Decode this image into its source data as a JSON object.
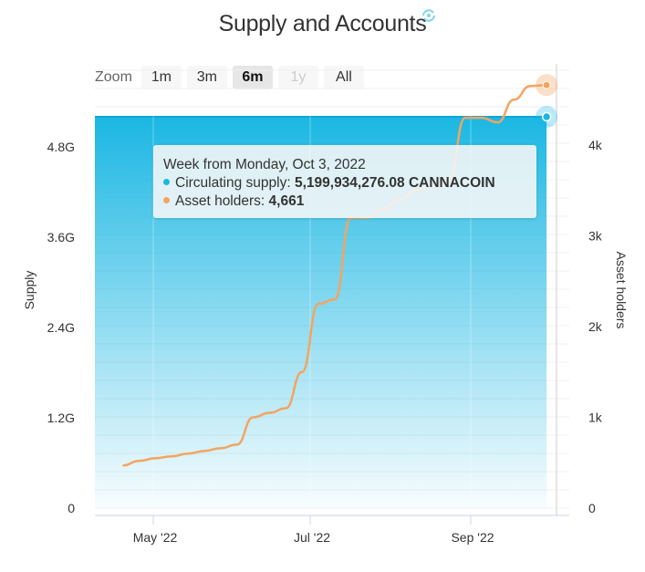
{
  "title": "Supply and Accounts",
  "zoom": {
    "label": "Zoom",
    "buttons": [
      "1m",
      "3m",
      "6m",
      "1y",
      "All"
    ],
    "active": "6m",
    "disabled": [
      "1y"
    ]
  },
  "tooltip": {
    "header": "Week from Monday, Oct 3, 2022",
    "series": [
      {
        "label": "Circulating supply:",
        "value": "5,199,934,276.08 CANNACOIN",
        "color": "#1bb7e3"
      },
      {
        "label": "Asset holders:",
        "value": "4,661",
        "color": "#f4a460"
      }
    ]
  },
  "chart_data": {
    "type": "area",
    "xlabel": "",
    "x_ticks": [
      "May '22",
      "Jul '22",
      "Sep '22"
    ],
    "y_left": {
      "label": "Supply",
      "ticks": [
        "0",
        "1.2G",
        "2.4G",
        "3.6G",
        "4.8G"
      ],
      "range": [
        0,
        5400000000
      ]
    },
    "y_right": {
      "label": "Asset holders",
      "ticks": [
        "0",
        "1k",
        "2k",
        "3k",
        "4k"
      ],
      "range": [
        0,
        4600
      ]
    },
    "grid": true,
    "series": [
      {
        "name": "Circulating supply",
        "axis": "left",
        "type": "area",
        "color": "#1bb7e3",
        "x": [
          "2022-04-04",
          "2022-10-03"
        ],
        "values": [
          5199934276.08,
          5199934276.08
        ]
      },
      {
        "name": "Asset holders",
        "axis": "right",
        "type": "line",
        "color": "#f4a460",
        "x": [
          "2022-04-04",
          "2022-04-11",
          "2022-04-18",
          "2022-04-25",
          "2022-05-02",
          "2022-05-09",
          "2022-05-16",
          "2022-05-23",
          "2022-05-30",
          "2022-06-06",
          "2022-06-13",
          "2022-06-20",
          "2022-06-27",
          "2022-07-04",
          "2022-07-11",
          "2022-07-18",
          "2022-07-25",
          "2022-08-01",
          "2022-08-08",
          "2022-08-15",
          "2022-08-22",
          "2022-08-29",
          "2022-09-05",
          "2022-09-12",
          "2022-09-19",
          "2022-09-26",
          "2022-10-03"
        ],
        "values": [
          470,
          520,
          550,
          570,
          600,
          630,
          660,
          700,
          1000,
          1050,
          1100,
          1500,
          2250,
          2300,
          3200,
          3200,
          3300,
          3400,
          3500,
          3550,
          3600,
          4300,
          4300,
          4250,
          4500,
          4650,
          4661
        ]
      }
    ]
  }
}
